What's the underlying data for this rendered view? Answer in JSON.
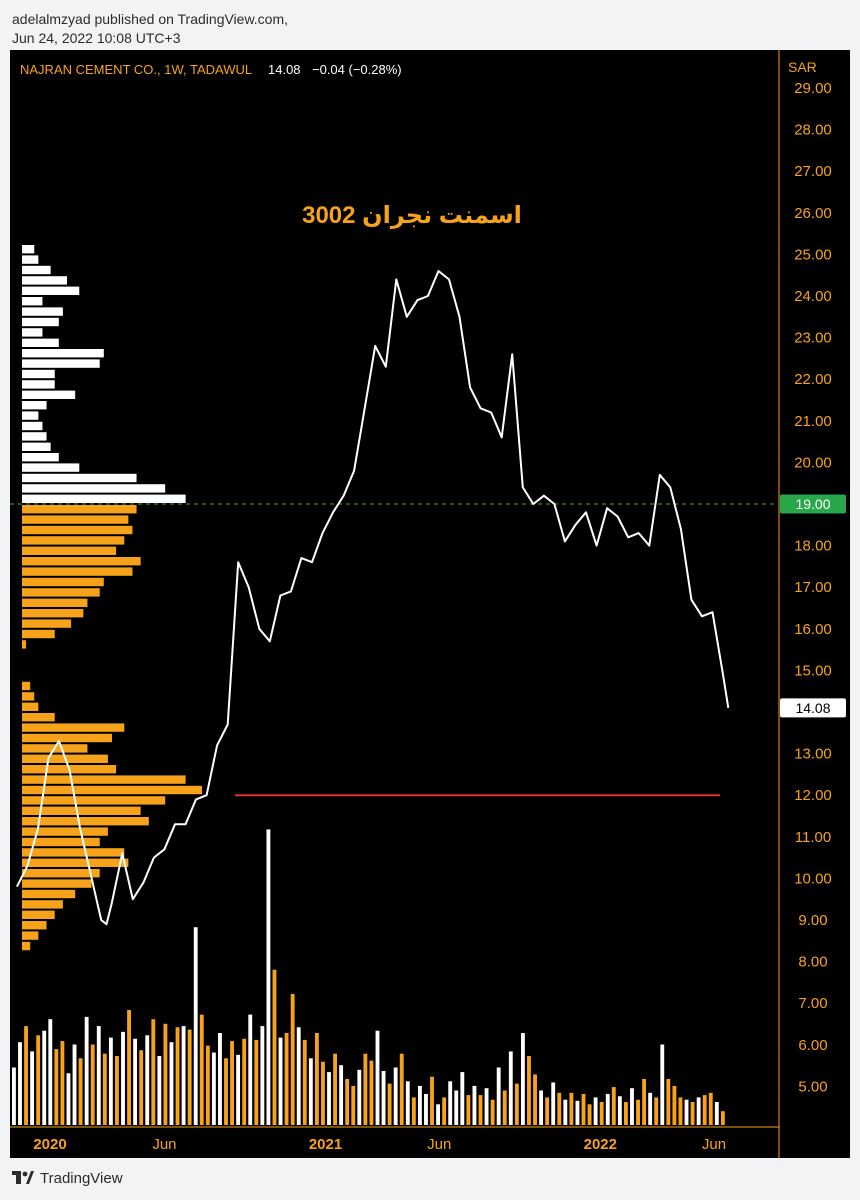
{
  "header": {
    "published_line": "adelalmzyad published on TradingView.com,",
    "date_line": "Jun 24, 2022 10:08 UTC+3"
  },
  "symbol_bar": {
    "name": "NAJRAN CEMENT CO., 1W, TADAWUL",
    "last": "14.08",
    "change": "−0.04 (−0.28%)"
  },
  "footer": {
    "brand": "TradingView"
  },
  "colors": {
    "background": "#000000",
    "accent": "#f7a21b",
    "line": "#ffffff",
    "green_label": "#29a84a",
    "support_line": "#e0303a",
    "dashed_line": "#3ea34c"
  },
  "chart_data": {
    "type": "line",
    "title": "اسمنت نجران 3002",
    "currency": "SAR",
    "y_axis": {
      "ticks": [
        "29.00",
        "28.00",
        "27.00",
        "26.00",
        "25.00",
        "24.00",
        "23.00",
        "22.00",
        "21.00",
        "20.00",
        "19.00",
        "18.00",
        "17.00",
        "16.00",
        "15.00",
        "14.00",
        "13.00",
        "12.00",
        "11.00",
        "10.00",
        "9.00",
        "8.00",
        "7.00",
        "6.00",
        "5.00"
      ],
      "ylim": [
        4.4,
        29.0
      ]
    },
    "x_axis": {
      "ticks": [
        {
          "label": "2020",
          "date": "2020-01-01",
          "bold": true
        },
        {
          "label": "Jun",
          "date": "2020-06-01",
          "bold": false
        },
        {
          "label": "2021",
          "date": "2021-01-01",
          "bold": true
        },
        {
          "label": "Jun",
          "date": "2021-06-01",
          "bold": false
        },
        {
          "label": "2022",
          "date": "2022-01-01",
          "bold": true
        },
        {
          "label": "Jun",
          "date": "2022-06-01",
          "bold": false
        }
      ]
    },
    "series": [
      {
        "x": [
          "2019-11-18",
          "2019-12-02",
          "2019-12-16",
          "2019-12-30",
          "2020-01-13",
          "2020-01-27",
          "2020-02-10",
          "2020-02-24",
          "2020-03-09",
          "2020-03-16",
          "2020-03-23",
          "2020-04-06",
          "2020-04-20",
          "2020-05-04",
          "2020-05-18",
          "2020-06-01",
          "2020-06-15",
          "2020-06-29",
          "2020-07-13",
          "2020-07-27",
          "2020-08-10",
          "2020-08-24",
          "2020-09-07",
          "2020-09-21",
          "2020-10-05",
          "2020-10-19",
          "2020-11-02",
          "2020-11-16",
          "2020-11-30",
          "2020-12-14",
          "2020-12-28",
          "2021-01-11",
          "2021-01-25",
          "2021-02-08",
          "2021-02-22",
          "2021-03-08",
          "2021-03-22",
          "2021-04-05",
          "2021-04-19",
          "2021-05-03",
          "2021-05-17",
          "2021-05-31",
          "2021-06-14",
          "2021-06-28",
          "2021-07-12",
          "2021-07-26",
          "2021-08-09",
          "2021-08-23",
          "2021-09-06",
          "2021-09-20",
          "2021-10-04",
          "2021-10-18",
          "2021-11-01",
          "2021-11-15",
          "2021-11-29",
          "2021-12-13",
          "2021-12-27",
          "2022-01-10",
          "2022-01-24",
          "2022-02-07",
          "2022-02-21",
          "2022-03-07",
          "2022-03-21",
          "2022-04-04",
          "2022-04-18",
          "2022-05-02",
          "2022-05-16",
          "2022-05-30",
          "2022-06-13",
          "2022-06-20"
        ],
        "values": [
          9.8,
          10.3,
          11.2,
          12.9,
          13.3,
          12.6,
          11.2,
          10.1,
          9.0,
          8.9,
          9.4,
          10.6,
          9.5,
          9.9,
          10.5,
          10.7,
          11.3,
          11.3,
          11.9,
          12.0,
          13.2,
          13.7,
          17.6,
          17.0,
          16.0,
          15.7,
          16.8,
          16.9,
          17.7,
          17.6,
          18.3,
          18.8,
          19.2,
          19.8,
          21.3,
          22.8,
          22.3,
          24.4,
          23.5,
          23.9,
          24.0,
          24.6,
          24.4,
          23.5,
          21.8,
          21.3,
          21.2,
          20.6,
          22.6,
          19.4,
          19.0,
          19.2,
          19.0,
          18.1,
          18.5,
          18.8,
          18.0,
          18.9,
          18.7,
          18.2,
          18.3,
          18.0,
          19.7,
          19.4,
          18.4,
          16.7,
          16.3,
          16.4,
          14.9,
          14.1
        ]
      }
    ],
    "last_value_label": "14.08",
    "horizontal_line_label": "19.00",
    "horizontal_line_value": 19.0,
    "support_line_value": 12.0,
    "volume_profile": {
      "price_bins": [
        8.25,
        8.5,
        8.75,
        9.0,
        9.25,
        9.5,
        9.75,
        10.0,
        10.25,
        10.5,
        10.75,
        11.0,
        11.25,
        11.5,
        11.75,
        12.0,
        12.25,
        12.5,
        12.75,
        13.0,
        13.25,
        13.5,
        13.75,
        14.0,
        14.25,
        14.5,
        14.75,
        15.0,
        15.25,
        15.5,
        15.75,
        16.0,
        16.25,
        16.5,
        16.75,
        17.0,
        17.25,
        17.5,
        17.75,
        18.0,
        18.25,
        18.5,
        18.75,
        19.0,
        19.25,
        19.5,
        19.75,
        20.0,
        20.25,
        20.5,
        20.75,
        21.0,
        21.25,
        21.5,
        21.75,
        22.0,
        22.25,
        22.5,
        22.75,
        23.0,
        23.25,
        23.5,
        23.75,
        24.0,
        24.25,
        24.5,
        24.75,
        25.0
      ],
      "values": [
        2,
        4,
        6,
        8,
        10,
        13,
        17,
        19,
        26,
        25,
        19,
        21,
        31,
        29,
        35,
        44,
        40,
        23,
        21,
        16,
        22,
        25,
        8,
        4,
        3,
        2,
        0,
        0,
        0,
        1,
        8,
        12,
        15,
        16,
        19,
        20,
        27,
        29,
        23,
        25,
        27,
        26,
        28,
        40,
        35,
        28,
        14,
        9,
        7,
        6,
        5,
        4,
        6,
        13,
        8,
        8,
        19,
        20,
        9,
        5,
        9,
        10,
        5,
        14,
        11,
        7,
        4,
        3
      ],
      "value_area_high": 19.0
    },
    "volume_bars": [
      {
        "v": 0.5,
        "up": false
      },
      {
        "v": 0.72,
        "up": false
      },
      {
        "v": 0.86,
        "up": true
      },
      {
        "v": 0.64,
        "up": false
      },
      {
        "v": 0.78,
        "up": true
      },
      {
        "v": 0.82,
        "up": false
      },
      {
        "v": 0.92,
        "up": false
      },
      {
        "v": 0.66,
        "up": true
      },
      {
        "v": 0.73,
        "up": true
      },
      {
        "v": 0.45,
        "up": false
      },
      {
        "v": 0.7,
        "up": false
      },
      {
        "v": 0.58,
        "up": true
      },
      {
        "v": 0.94,
        "up": false
      },
      {
        "v": 0.7,
        "up": true
      },
      {
        "v": 0.86,
        "up": false
      },
      {
        "v": 0.62,
        "up": true
      },
      {
        "v": 0.76,
        "up": false
      },
      {
        "v": 0.6,
        "up": true
      },
      {
        "v": 0.81,
        "up": false
      },
      {
        "v": 1.0,
        "up": true
      },
      {
        "v": 0.75,
        "up": false
      },
      {
        "v": 0.65,
        "up": true
      },
      {
        "v": 0.78,
        "up": false
      },
      {
        "v": 0.92,
        "up": true
      },
      {
        "v": 0.6,
        "up": false
      },
      {
        "v": 0.88,
        "up": true
      },
      {
        "v": 0.72,
        "up": false
      },
      {
        "v": 0.85,
        "up": true
      },
      {
        "v": 0.86,
        "up": false
      },
      {
        "v": 0.83,
        "up": true
      },
      {
        "v": 1.72,
        "up": false
      },
      {
        "v": 0.96,
        "up": true
      },
      {
        "v": 0.69,
        "up": true
      },
      {
        "v": 0.63,
        "up": false
      },
      {
        "v": 0.8,
        "up": false
      },
      {
        "v": 0.58,
        "up": true
      },
      {
        "v": 0.73,
        "up": true
      },
      {
        "v": 0.61,
        "up": false
      },
      {
        "v": 0.75,
        "up": true
      },
      {
        "v": 0.96,
        "up": false
      },
      {
        "v": 0.74,
        "up": true
      },
      {
        "v": 0.86,
        "up": false
      },
      {
        "v": 2.57,
        "up": false
      },
      {
        "v": 1.35,
        "up": true
      },
      {
        "v": 0.76,
        "up": false
      },
      {
        "v": 0.8,
        "up": true
      },
      {
        "v": 1.14,
        "up": true
      },
      {
        "v": 0.85,
        "up": false
      },
      {
        "v": 0.74,
        "up": true
      },
      {
        "v": 0.58,
        "up": false
      },
      {
        "v": 0.8,
        "up": true
      },
      {
        "v": 0.55,
        "up": true
      },
      {
        "v": 0.46,
        "up": false
      },
      {
        "v": 0.62,
        "up": true
      },
      {
        "v": 0.52,
        "up": false
      },
      {
        "v": 0.4,
        "up": true
      },
      {
        "v": 0.34,
        "up": true
      },
      {
        "v": 0.48,
        "up": false
      },
      {
        "v": 0.62,
        "up": true
      },
      {
        "v": 0.56,
        "up": true
      },
      {
        "v": 0.82,
        "up": false
      },
      {
        "v": 0.47,
        "up": false
      },
      {
        "v": 0.36,
        "up": true
      },
      {
        "v": 0.5,
        "up": false
      },
      {
        "v": 0.62,
        "up": true
      },
      {
        "v": 0.38,
        "up": false
      },
      {
        "v": 0.24,
        "up": true
      },
      {
        "v": 0.34,
        "up": false
      },
      {
        "v": 0.27,
        "up": false
      },
      {
        "v": 0.42,
        "up": true
      },
      {
        "v": 0.18,
        "up": false
      },
      {
        "v": 0.24,
        "up": true
      },
      {
        "v": 0.38,
        "up": false
      },
      {
        "v": 0.3,
        "up": false
      },
      {
        "v": 0.46,
        "up": false
      },
      {
        "v": 0.26,
        "up": true
      },
      {
        "v": 0.34,
        "up": false
      },
      {
        "v": 0.26,
        "up": true
      },
      {
        "v": 0.32,
        "up": false
      },
      {
        "v": 0.22,
        "up": true
      },
      {
        "v": 0.5,
        "up": false
      },
      {
        "v": 0.3,
        "up": true
      },
      {
        "v": 0.64,
        "up": false
      },
      {
        "v": 0.36,
        "up": true
      },
      {
        "v": 0.8,
        "up": false
      },
      {
        "v": 0.6,
        "up": true
      },
      {
        "v": 0.44,
        "up": true
      },
      {
        "v": 0.3,
        "up": false
      },
      {
        "v": 0.24,
        "up": true
      },
      {
        "v": 0.37,
        "up": false
      },
      {
        "v": 0.28,
        "up": true
      },
      {
        "v": 0.22,
        "up": false
      },
      {
        "v": 0.28,
        "up": true
      },
      {
        "v": 0.21,
        "up": false
      },
      {
        "v": 0.27,
        "up": true
      },
      {
        "v": 0.18,
        "up": true
      },
      {
        "v": 0.24,
        "up": false
      },
      {
        "v": 0.2,
        "up": true
      },
      {
        "v": 0.27,
        "up": false
      },
      {
        "v": 0.33,
        "up": true
      },
      {
        "v": 0.25,
        "up": false
      },
      {
        "v": 0.2,
        "up": true
      },
      {
        "v": 0.32,
        "up": false
      },
      {
        "v": 0.22,
        "up": true
      },
      {
        "v": 0.4,
        "up": true
      },
      {
        "v": 0.28,
        "up": false
      },
      {
        "v": 0.24,
        "up": true
      },
      {
        "v": 0.7,
        "up": false
      },
      {
        "v": 0.4,
        "up": true
      },
      {
        "v": 0.34,
        "up": true
      },
      {
        "v": 0.24,
        "up": true
      },
      {
        "v": 0.22,
        "up": false
      },
      {
        "v": 0.2,
        "up": true
      },
      {
        "v": 0.24,
        "up": false
      },
      {
        "v": 0.26,
        "up": true
      },
      {
        "v": 0.28,
        "up": true
      },
      {
        "v": 0.2,
        "up": false
      },
      {
        "v": 0.12,
        "up": true
      }
    ]
  }
}
